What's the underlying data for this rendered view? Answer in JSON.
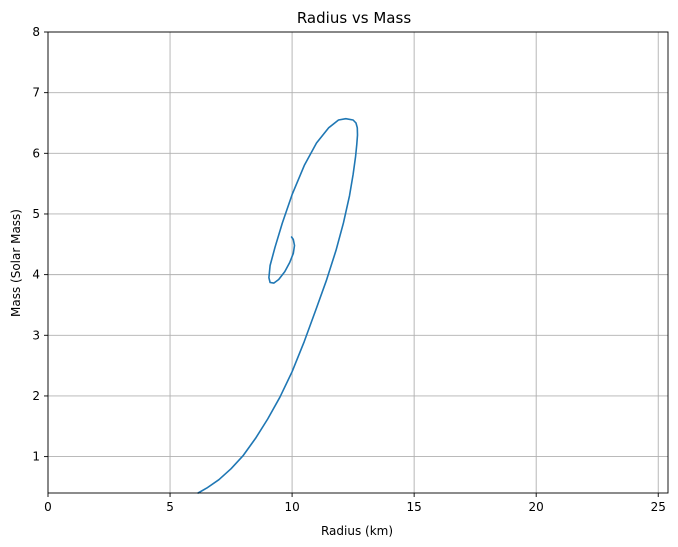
{
  "chart_data": {
    "type": "line",
    "title": "Radius vs Mass",
    "xlabel": "Radius (km)",
    "ylabel": "Mass (Solar Mass)",
    "xlim": [
      0,
      25.4
    ],
    "ylim": [
      0.4,
      8.0
    ],
    "xticks": [
      0,
      5,
      10,
      15,
      20,
      25
    ],
    "yticks": [
      1,
      2,
      3,
      4,
      5,
      6,
      7,
      8
    ],
    "grid": true,
    "legend": "none",
    "series": [
      {
        "color": "#1f77b4",
        "x": [
          6.15,
          6.5,
          7.0,
          7.5,
          8.0,
          8.5,
          9.0,
          9.5,
          10.0,
          10.5,
          11.0,
          11.4,
          11.8,
          12.1,
          12.35,
          12.5,
          12.6,
          12.65,
          12.68,
          12.67,
          12.62,
          12.5,
          12.2,
          11.9,
          11.5,
          11.0,
          10.5,
          10.0,
          9.6,
          9.3,
          9.1,
          9.05,
          9.1,
          9.25,
          9.45,
          9.7,
          9.9,
          10.05,
          10.1,
          10.05,
          9.98
        ],
        "y": [
          0.4,
          0.48,
          0.62,
          0.8,
          1.02,
          1.3,
          1.62,
          1.98,
          2.4,
          2.9,
          3.45,
          3.9,
          4.4,
          4.85,
          5.3,
          5.65,
          5.95,
          6.15,
          6.3,
          6.42,
          6.5,
          6.55,
          6.57,
          6.55,
          6.42,
          6.17,
          5.8,
          5.32,
          4.85,
          4.45,
          4.15,
          3.95,
          3.87,
          3.86,
          3.92,
          4.05,
          4.2,
          4.35,
          4.48,
          4.58,
          4.62
        ]
      }
    ]
  }
}
